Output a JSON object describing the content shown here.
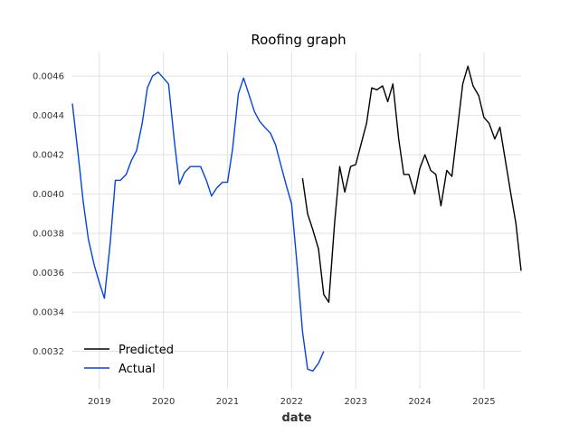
{
  "chart_data": {
    "type": "line",
    "title": "Roofing graph",
    "xlabel": "date",
    "ylabel": "",
    "x_tick_labels": [
      "2019",
      "2020",
      "2021",
      "2022",
      "2023",
      "2024",
      "2025"
    ],
    "y_tick_labels": [
      "0.0032",
      "0.0034",
      "0.0036",
      "0.0038",
      "0.0040",
      "0.0042",
      "0.0044",
      "0.0046"
    ],
    "xlim": [
      2018.58,
      2025.58
    ],
    "ylim": [
      0.00301,
      0.00472
    ],
    "grid": true,
    "legend_position": "bottom-left",
    "series": [
      {
        "name": "Actual",
        "color": "#0343df",
        "x": [
          2018.58,
          2018.67,
          2018.75,
          2018.83,
          2018.92,
          2019.0,
          2019.08,
          2019.17,
          2019.25,
          2019.33,
          2019.42,
          2019.5,
          2019.58,
          2019.67,
          2019.75,
          2019.83,
          2019.92,
          2020.0,
          2020.08,
          2020.17,
          2020.25,
          2020.33,
          2020.42,
          2020.5,
          2020.58,
          2020.67,
          2020.75,
          2020.83,
          2020.92,
          2021.0,
          2021.08,
          2021.17,
          2021.25,
          2021.33,
          2021.42,
          2021.5,
          2021.58,
          2021.67,
          2021.75,
          2021.83,
          2021.92,
          2022.0,
          2022.08,
          2022.17,
          2022.25,
          2022.33,
          2022.42,
          2022.5
        ],
        "values": [
          0.00446,
          0.0042,
          0.00396,
          0.00377,
          0.00364,
          0.00355,
          0.00347,
          0.00375,
          0.00407,
          0.00407,
          0.0041,
          0.00417,
          0.00422,
          0.00436,
          0.00454,
          0.0046,
          0.00462,
          0.00459,
          0.00456,
          0.00427,
          0.00405,
          0.00411,
          0.00414,
          0.00414,
          0.00414,
          0.00407,
          0.00399,
          0.00403,
          0.00406,
          0.00406,
          0.00423,
          0.00451,
          0.00459,
          0.00451,
          0.00442,
          0.00437,
          0.00434,
          0.00431,
          0.00425,
          0.00415,
          0.00404,
          0.00395,
          0.00366,
          0.0033,
          0.00311,
          0.0031,
          0.00314,
          0.0032
        ]
      },
      {
        "name": "Predicted",
        "color": "#000000",
        "x": [
          2022.17,
          2022.25,
          2022.33,
          2022.42,
          2022.5,
          2022.58,
          2022.67,
          2022.75,
          2022.83,
          2022.92,
          2023.0,
          2023.08,
          2023.17,
          2023.25,
          2023.33,
          2023.42,
          2023.5,
          2023.58,
          2023.67,
          2023.75,
          2023.83,
          2023.92,
          2024.0,
          2024.08,
          2024.17,
          2024.25,
          2024.33,
          2024.42,
          2024.5,
          2024.58,
          2024.67,
          2024.75,
          2024.83,
          2024.92,
          2025.0,
          2025.08,
          2025.17,
          2025.25,
          2025.33,
          2025.42,
          2025.5,
          2025.58
        ],
        "values": [
          0.00408,
          0.0039,
          0.00382,
          0.00372,
          0.00349,
          0.00345,
          0.00385,
          0.00414,
          0.00401,
          0.00414,
          0.00415,
          0.00425,
          0.00436,
          0.00454,
          0.00453,
          0.00455,
          0.00447,
          0.00456,
          0.00428,
          0.0041,
          0.0041,
          0.004,
          0.00413,
          0.0042,
          0.00412,
          0.0041,
          0.00394,
          0.00412,
          0.00409,
          0.00431,
          0.00456,
          0.00465,
          0.00455,
          0.0045,
          0.00439,
          0.00436,
          0.00428,
          0.00434,
          0.00418,
          0.004,
          0.00385,
          0.00361
        ]
      }
    ]
  }
}
